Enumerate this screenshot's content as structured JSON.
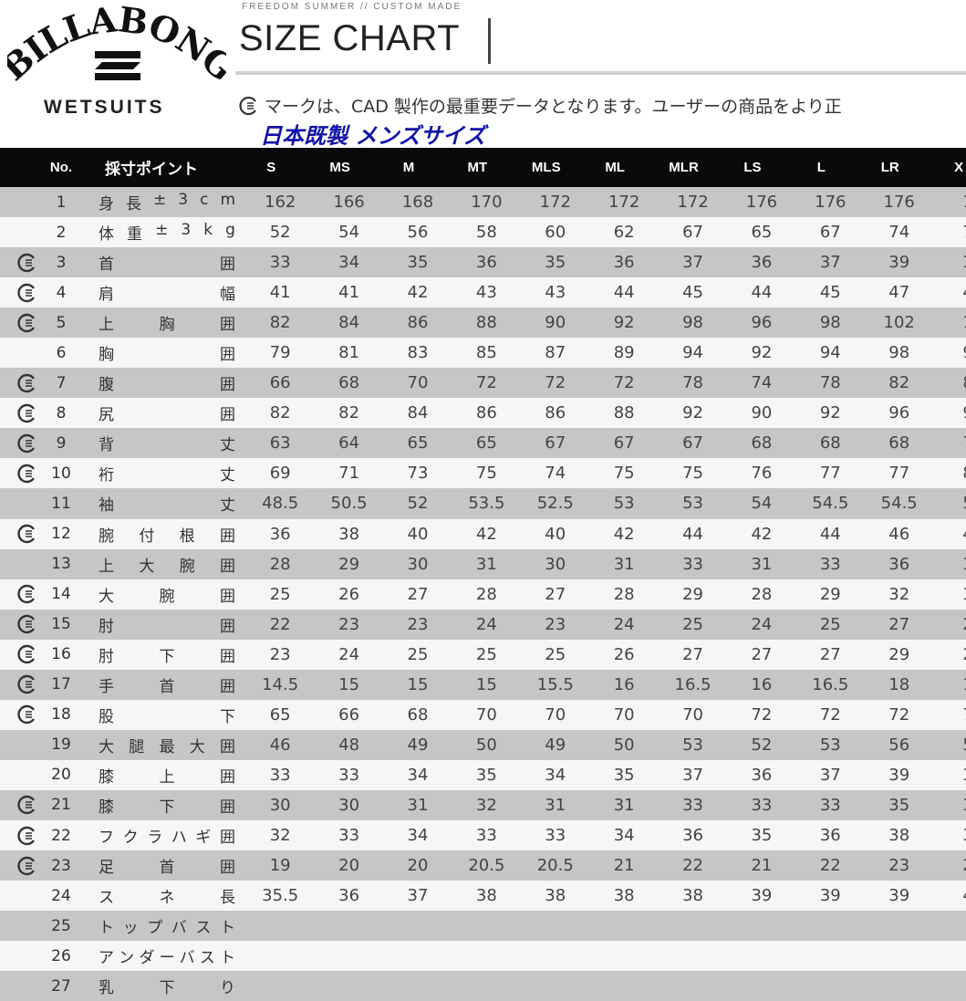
{
  "brand": {
    "logo_text": "BILLABONG",
    "sub": "WETSUITS"
  },
  "header": {
    "kicker": "FREEDOM SUMMER // CUSTOM MADE",
    "title": "SIZE CHART",
    "note": "マークは、CAD 製作の最重要データとなります。ユーザーの商品をより正",
    "section_title": "日本既製 メンズサイズ"
  },
  "colors": {
    "header_bg": "#0a0a0a",
    "row_shaded": "#c6c6c6",
    "row_light": "#f6f6f6",
    "section_title": "#1414a8"
  },
  "table": {
    "col_no": "No.",
    "col_point": "採寸ポイント",
    "sizes": [
      "S",
      "MS",
      "M",
      "MT",
      "MLS",
      "ML",
      "MLR",
      "LS",
      "L",
      "LR",
      "X"
    ],
    "rows": [
      {
        "no": "1",
        "label": [
          "身",
          "長",
          "±",
          "3",
          "c",
          "m"
        ],
        "cad": false,
        "values": [
          "162",
          "166",
          "168",
          "170",
          "172",
          "172",
          "172",
          "176",
          "176",
          "176",
          "1"
        ]
      },
      {
        "no": "2",
        "label": [
          "体",
          "重",
          "±",
          "3",
          "k",
          "g"
        ],
        "cad": false,
        "values": [
          "52",
          "54",
          "56",
          "58",
          "60",
          "62",
          "67",
          "65",
          "67",
          "74",
          "7"
        ]
      },
      {
        "no": "3",
        "label": [
          "首",
          "囲"
        ],
        "cad": true,
        "values": [
          "33",
          "34",
          "35",
          "36",
          "35",
          "36",
          "37",
          "36",
          "37",
          "39",
          "3"
        ]
      },
      {
        "no": "4",
        "label": [
          "肩",
          "幅"
        ],
        "cad": true,
        "values": [
          "41",
          "41",
          "42",
          "43",
          "43",
          "44",
          "45",
          "44",
          "45",
          "47",
          "4"
        ]
      },
      {
        "no": "5",
        "label": [
          "上",
          "胸",
          "囲"
        ],
        "cad": true,
        "values": [
          "82",
          "84",
          "86",
          "88",
          "90",
          "92",
          "98",
          "96",
          "98",
          "102",
          "1"
        ]
      },
      {
        "no": "6",
        "label": [
          "胸",
          "囲"
        ],
        "cad": false,
        "values": [
          "79",
          "81",
          "83",
          "85",
          "87",
          "89",
          "94",
          "92",
          "94",
          "98",
          "9"
        ]
      },
      {
        "no": "7",
        "label": [
          "腹",
          "囲"
        ],
        "cad": true,
        "values": [
          "66",
          "68",
          "70",
          "72",
          "72",
          "72",
          "78",
          "74",
          "78",
          "82",
          "8"
        ]
      },
      {
        "no": "8",
        "label": [
          "尻",
          "囲"
        ],
        "cad": true,
        "values": [
          "82",
          "82",
          "84",
          "86",
          "86",
          "88",
          "92",
          "90",
          "92",
          "96",
          "9"
        ]
      },
      {
        "no": "9",
        "label": [
          "背",
          "丈"
        ],
        "cad": true,
        "values": [
          "63",
          "64",
          "65",
          "65",
          "67",
          "67",
          "67",
          "68",
          "68",
          "68",
          "7"
        ]
      },
      {
        "no": "10",
        "label": [
          "裄",
          "丈"
        ],
        "cad": true,
        "values": [
          "69",
          "71",
          "73",
          "75",
          "74",
          "75",
          "75",
          "76",
          "77",
          "77",
          "8"
        ]
      },
      {
        "no": "11",
        "label": [
          "袖",
          "丈"
        ],
        "cad": false,
        "values": [
          "48.5",
          "50.5",
          "52",
          "53.5",
          "52.5",
          "53",
          "53",
          "54",
          "54.5",
          "54.5",
          "5"
        ]
      },
      {
        "no": "12",
        "label": [
          "腕",
          "付",
          "根",
          "囲"
        ],
        "cad": true,
        "values": [
          "36",
          "38",
          "40",
          "42",
          "40",
          "42",
          "44",
          "42",
          "44",
          "46",
          "4"
        ]
      },
      {
        "no": "13",
        "label": [
          "上",
          "大",
          "腕",
          "囲"
        ],
        "cad": false,
        "values": [
          "28",
          "29",
          "30",
          "31",
          "30",
          "31",
          "33",
          "31",
          "33",
          "36",
          "3"
        ]
      },
      {
        "no": "14",
        "label": [
          "大",
          "腕",
          "囲"
        ],
        "cad": true,
        "values": [
          "25",
          "26",
          "27",
          "28",
          "27",
          "28",
          "29",
          "28",
          "29",
          "32",
          "3"
        ]
      },
      {
        "no": "15",
        "label": [
          "肘",
          "囲"
        ],
        "cad": true,
        "values": [
          "22",
          "23",
          "23",
          "24",
          "23",
          "24",
          "25",
          "24",
          "25",
          "27",
          "2"
        ]
      },
      {
        "no": "16",
        "label": [
          "肘",
          "下",
          "囲"
        ],
        "cad": true,
        "values": [
          "23",
          "24",
          "25",
          "25",
          "25",
          "26",
          "27",
          "27",
          "27",
          "29",
          "2"
        ]
      },
      {
        "no": "17",
        "label": [
          "手",
          "首",
          "囲"
        ],
        "cad": true,
        "values": [
          "14.5",
          "15",
          "15",
          "15",
          "15.5",
          "16",
          "16.5",
          "16",
          "16.5",
          "18",
          "1"
        ]
      },
      {
        "no": "18",
        "label": [
          "股",
          "下"
        ],
        "cad": true,
        "values": [
          "65",
          "66",
          "68",
          "70",
          "70",
          "70",
          "70",
          "72",
          "72",
          "72",
          "7"
        ]
      },
      {
        "no": "19",
        "label": [
          "大",
          "腿",
          "最",
          "大",
          "囲"
        ],
        "cad": false,
        "values": [
          "46",
          "48",
          "49",
          "50",
          "49",
          "50",
          "53",
          "52",
          "53",
          "56",
          "5"
        ]
      },
      {
        "no": "20",
        "label": [
          "膝",
          "上",
          "囲"
        ],
        "cad": false,
        "values": [
          "33",
          "33",
          "34",
          "35",
          "34",
          "35",
          "37",
          "36",
          "37",
          "39",
          "3"
        ]
      },
      {
        "no": "21",
        "label": [
          "膝",
          "下",
          "囲"
        ],
        "cad": true,
        "values": [
          "30",
          "30",
          "31",
          "32",
          "31",
          "31",
          "33",
          "33",
          "33",
          "35",
          "3"
        ]
      },
      {
        "no": "22",
        "label": [
          "フ",
          "ク",
          "ラ",
          "ハ",
          "ギ",
          "囲"
        ],
        "cad": true,
        "values": [
          "32",
          "33",
          "34",
          "33",
          "33",
          "34",
          "36",
          "35",
          "36",
          "38",
          "3"
        ]
      },
      {
        "no": "23",
        "label": [
          "足",
          "首",
          "囲"
        ],
        "cad": true,
        "values": [
          "19",
          "20",
          "20",
          "20.5",
          "20.5",
          "21",
          "22",
          "21",
          "22",
          "23",
          "2"
        ]
      },
      {
        "no": "24",
        "label": [
          "ス",
          "ネ",
          "長"
        ],
        "cad": false,
        "values": [
          "35.5",
          "36",
          "37",
          "38",
          "38",
          "38",
          "38",
          "39",
          "39",
          "39",
          "4"
        ]
      },
      {
        "no": "25",
        "label": [
          "ト",
          "ッ",
          "プ",
          "バ",
          "ス",
          "ト"
        ],
        "cad": false,
        "values": []
      },
      {
        "no": "26",
        "label": [
          "ア",
          "ン",
          "ダ",
          "ー",
          "バ",
          "ス",
          "ト"
        ],
        "cad": false,
        "values": []
      },
      {
        "no": "27",
        "label": [
          "乳",
          "下",
          "り"
        ],
        "cad": false,
        "values": []
      }
    ]
  }
}
